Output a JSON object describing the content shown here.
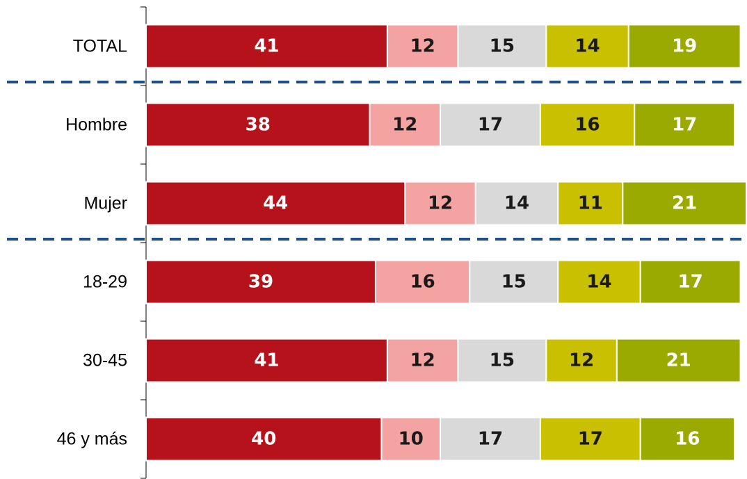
{
  "chart_data": {
    "type": "stacked_bar_horizontal",
    "categories": [
      "TOTAL",
      "Hombre",
      "Mujer",
      "18-29",
      "30-45",
      "46 y más"
    ],
    "series": [
      {
        "color": "#b5121b",
        "label_color": "#ffffff",
        "values": [
          41,
          38,
          44,
          39,
          41,
          40
        ]
      },
      {
        "color": "#f4a3a3",
        "label_color": "#1a1a1a",
        "values": [
          12,
          12,
          12,
          16,
          12,
          10
        ]
      },
      {
        "color": "#d9d9d9",
        "label_color": "#1a1a1a",
        "values": [
          15,
          17,
          14,
          15,
          15,
          17
        ]
      },
      {
        "color": "#c8c000",
        "label_color": "#1a1a1a",
        "values": [
          14,
          16,
          11,
          14,
          12,
          17
        ]
      },
      {
        "color": "#9aaa00",
        "label_color": "#ffffff",
        "values": [
          19,
          17,
          21,
          17,
          21,
          16
        ]
      }
    ],
    "xlim": [
      0,
      102
    ]
  }
}
